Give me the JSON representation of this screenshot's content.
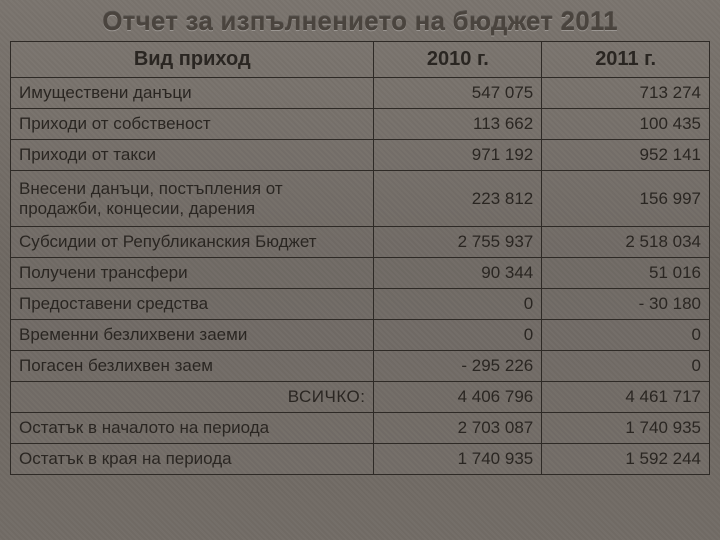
{
  "title": "Отчет за изпълнението на бюджет 2011",
  "columns": {
    "label": "Вид приход",
    "y1": "2010 г.",
    "y2": "2011 г."
  },
  "rows": [
    {
      "label": "Имуществени данъци",
      "y1": "547 075",
      "y2": "713 274"
    },
    {
      "label": "Приходи от собственост",
      "y1": "113 662",
      "y2": "100 435"
    },
    {
      "label": "Приходи от такси",
      "y1": "971 192",
      "y2": "952 141"
    },
    {
      "label": "Внесени данъци, постъпления от продажби, концесии, дарения",
      "y1": "223 812",
      "y2": "156 997",
      "multiline": true
    },
    {
      "label": "Субсидии от Републиканския Бюджет",
      "y1": "2 755 937",
      "y2": "2 518 034"
    },
    {
      "label": "Получени трансфери",
      "y1": "90 344",
      "y2": "51 016"
    },
    {
      "label": "Предоставени средства",
      "y1": "0",
      "y2": "- 30 180"
    },
    {
      "label": "Временни безлихвени заеми",
      "y1": "0",
      "y2": "0"
    },
    {
      "label": "Погасен безлихвен заем",
      "y1": "- 295 226",
      "y2": "0"
    },
    {
      "label": "ВСИЧКО:",
      "y1": "4 406 796",
      "y2": "4 461 717",
      "total": true
    },
    {
      "label": "Остатък в началото на периода",
      "y1": "2 703 087",
      "y2": "1 740 935"
    },
    {
      "label": "Остатък в края на периода",
      "y1": "1 740 935",
      "y2": "1 592 244"
    }
  ],
  "style": {
    "background_color": "#6e6862",
    "border_color": "#2e2a26",
    "title_color": "#4a443e",
    "text_color": "#2a2622",
    "title_fontsize": 26,
    "header_fontsize": 20,
    "cell_fontsize": 17,
    "col_widths_pct": [
      52,
      24,
      24
    ]
  }
}
